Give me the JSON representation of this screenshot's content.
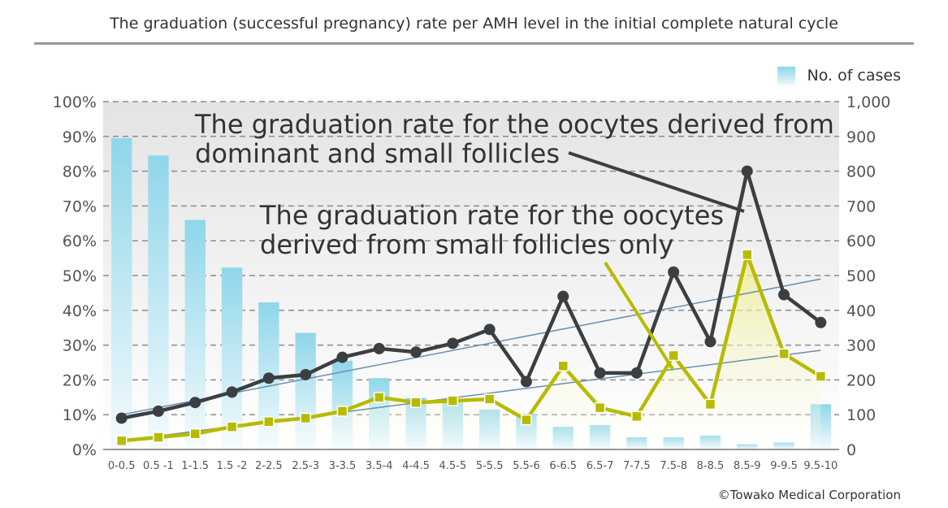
{
  "chart_data": {
    "type": "bar+line",
    "title": "The graduation (successful pregnancy) rate per AMH level in the initial complete natural cycle",
    "categories": [
      "0-0.5",
      "0.5 -1",
      "1-1.5",
      "1.5 -2",
      "2-2.5",
      "2.5-3",
      "3-3.5",
      "3.5-4",
      "4-4.5",
      "4.5-5",
      "5-5.5",
      "5.5-6",
      "6-6.5",
      "6.5-7",
      "7-7.5",
      "7.5-8",
      "8-8.5",
      "8.5-9",
      "9-9.5",
      "9.5-10"
    ],
    "left_axis": {
      "ylim": [
        0,
        100
      ],
      "ticks": [
        "0%",
        "10%",
        "20%",
        "30%",
        "40%",
        "50%",
        "60%",
        "70%",
        "80%",
        "90%",
        "100%"
      ]
    },
    "right_axis": {
      "ylim": [
        0,
        1000
      ],
      "ticks": [
        "0",
        "100",
        "200",
        "300",
        "400",
        "500",
        "600",
        "700",
        "800",
        "900",
        "1,000"
      ]
    },
    "bars": {
      "name": "No. of cases",
      "axis": "right",
      "values": [
        895,
        845,
        660,
        523,
        423,
        335,
        255,
        205,
        148,
        140,
        115,
        100,
        65,
        70,
        35,
        35,
        40,
        15,
        20,
        130
      ]
    },
    "series": [
      {
        "axis": "left",
        "color": "#3b3f42",
        "values": [
          9,
          11,
          13.5,
          16.5,
          20.5,
          21.5,
          26.5,
          29,
          28,
          30.5,
          34.5,
          19.5,
          44,
          22,
          22,
          51,
          31,
          80,
          44.5,
          36.5
        ]
      },
      {
        "axis": "left",
        "color": "#b7bb00",
        "values": [
          2.5,
          3.5,
          4.5,
          6.5,
          8,
          9,
          11,
          15,
          13.5,
          14,
          14.5,
          8.5,
          24,
          12,
          9.5,
          27,
          13,
          56,
          27.5,
          21
        ]
      }
    ],
    "trendlines": [
      {
        "color": "#6a8fb0",
        "start": 10,
        "end": 49
      },
      {
        "color": "#6a8fb0",
        "start": 2.5,
        "end": 28.5
      }
    ],
    "annotations": [
      "The graduation rate for the oocytes derived from",
      "dominant and small follicles",
      "The graduation rate for the oocytes",
      "derived from small follicles only"
    ],
    "grid": true,
    "legend_position": "top-right"
  },
  "copyright": "©Towako Medical Corporation",
  "colors": {
    "plot_bg_top": "#e4e4e4",
    "bar_top": "#8fd6ea",
    "yellow_fill": "#ecec8a",
    "grid": "#8c8c8c"
  }
}
